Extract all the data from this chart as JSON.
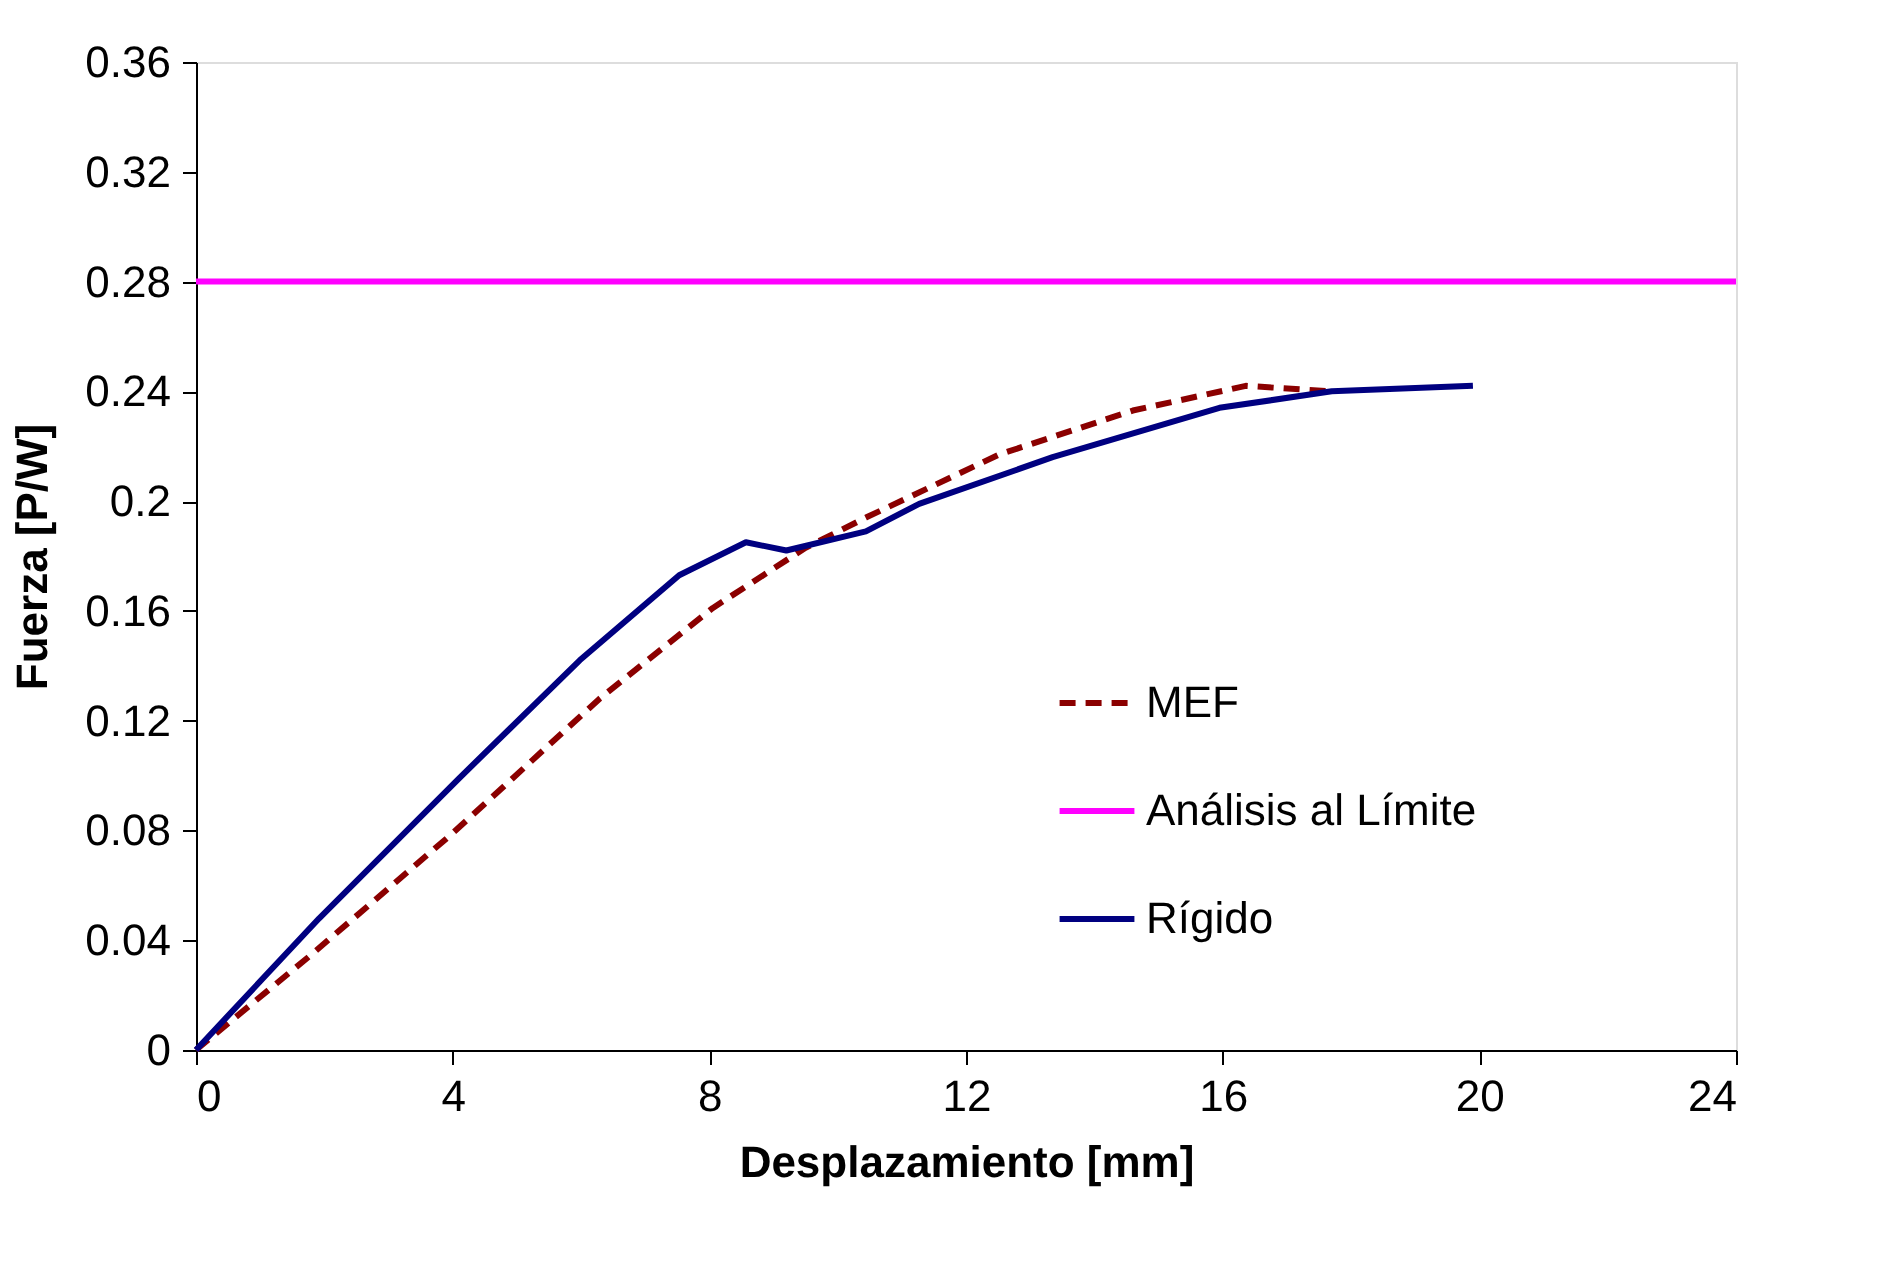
{
  "chart_data": {
    "type": "line",
    "xlabel": "Desplazamiento [mm]",
    "ylabel": "Fuerza [P/W]",
    "xlim": [
      0,
      24
    ],
    "xticks": [
      0,
      4,
      8,
      12,
      16,
      20,
      24
    ],
    "ylim": [
      0,
      0.36
    ],
    "yticks": [
      0,
      0.04,
      0.08,
      0.12,
      0.16,
      0.2,
      0.24,
      0.28,
      0.32,
      0.36
    ],
    "grid": false,
    "legend": "right",
    "marker": "none",
    "series": [
      {
        "name": "MEF",
        "color": "#8b0000",
        "line_style": "dashed",
        "x": [
          0,
          1.81,
          4.0,
          6.29,
          8.05,
          9.5,
          10.44,
          12.52,
          14.6,
          16.36,
          17.7
        ],
        "values": [
          0,
          0.035,
          0.079,
          0.128,
          0.161,
          0.183,
          0.194,
          0.217,
          0.233,
          0.242,
          0.24
        ]
      },
      {
        "name": "Análisis al Límite",
        "color": "#ff00ff",
        "line_style": "solid",
        "x": [
          0,
          24
        ],
        "values": [
          0.28,
          0.28
        ]
      },
      {
        "name": "Rígido",
        "color": "#000080",
        "line_style": "solid",
        "x": [
          0,
          1.92,
          4.1,
          5.98,
          7.53,
          8.57,
          9.2,
          10.44,
          11.27,
          13.35,
          15.95,
          17.7,
          19.9
        ],
        "values": [
          0,
          0.048,
          0.099,
          0.142,
          0.173,
          0.185,
          0.182,
          0.189,
          0.199,
          0.216,
          0.234,
          0.24,
          0.242
        ]
      }
    ]
  }
}
